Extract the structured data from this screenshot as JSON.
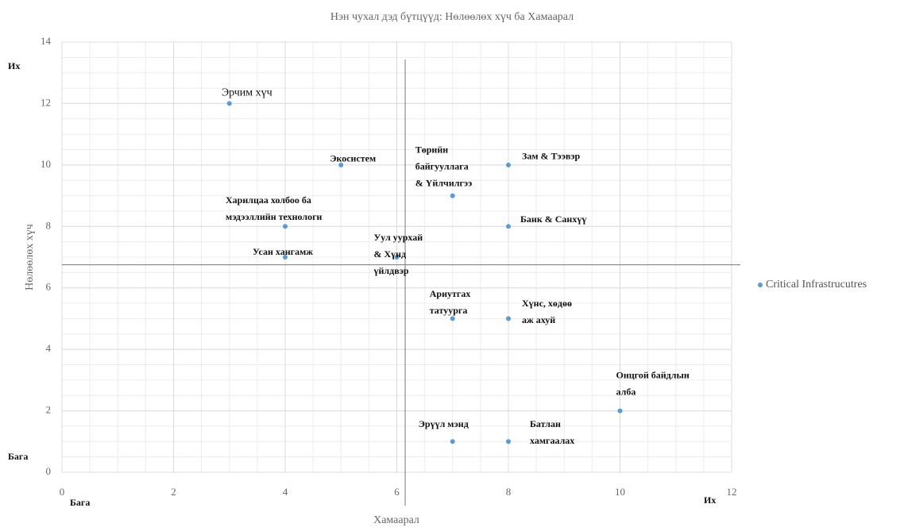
{
  "chart_data": {
    "type": "scatter",
    "title": "Нэн чухал дэд бүтцүүд: Нөлөөлөх хүч ба Хамаарал",
    "x_label": "Хамаарал",
    "y_label": "Нөлөөлөх хүч",
    "annotations": {
      "y_high": "Их",
      "y_low": "Бага",
      "x_low": "Бага",
      "x_high": "Их"
    },
    "xlim": [
      0,
      12
    ],
    "xticks": [
      0,
      2,
      4,
      6,
      8,
      10,
      12
    ],
    "ylim": [
      0,
      14
    ],
    "yticks": [
      0,
      2,
      4,
      6,
      8,
      10,
      12,
      14
    ],
    "grid": true,
    "minor_grid_step": 0.5,
    "quadrant_lines": {
      "x": 6.15,
      "y": 6.75
    },
    "legend": "right",
    "series": [
      {
        "name": "Critical Infrastrucutres",
        "color": "#5b9bd5",
        "x": [
          3,
          5,
          7,
          8,
          4,
          8,
          4,
          6,
          7,
          8,
          10,
          7,
          8
        ],
        "values": [
          12,
          10,
          9,
          10,
          8,
          8,
          7,
          7,
          5,
          5,
          2,
          1,
          1
        ],
        "labels": [
          [
            "Эрчим хүч"
          ],
          [
            "Экосистем"
          ],
          [
            "Төрийн",
            "байгууллага",
            "& Үйлчилгээ"
          ],
          [
            "Зам & Тээвэр"
          ],
          [
            "Харилцаа холбоо ба",
            "мэдээллийн технологи"
          ],
          [
            "Банк & Санхүү"
          ],
          [
            "Усан хангамж"
          ],
          [
            "Уул уурхай",
            "& Хүнд",
            "үйлдвэр"
          ],
          [
            "Ариутгах",
            "татуурга"
          ],
          [
            "Хүнс, хөдөө",
            "аж ахуй"
          ],
          [
            "Онцгой байдлын",
            "алба"
          ],
          [
            "Эрүүл мэнд"
          ],
          [
            "Батлан",
            "хамгаалах"
          ]
        ]
      }
    ]
  }
}
